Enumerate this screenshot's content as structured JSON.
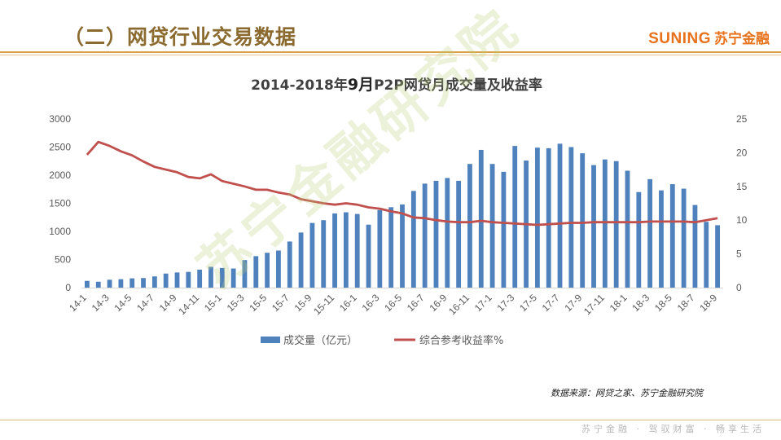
{
  "header": {
    "title": "（二）网贷行业交易数据",
    "brand_en": "SUNING",
    "brand_cn": "苏宁金融"
  },
  "watermark": "苏宁金融研究院",
  "source_note": "数据来源：网贷之家、苏宁金融研究院",
  "footer_slogan": "苏宁金融 · 驾驭财富 · 畅享生活",
  "colors": {
    "bar": "#4f81bd",
    "line": "#c0504d",
    "header_text": "#8b6a2f",
    "brand": "#e8721b",
    "rule": "#d7a040"
  },
  "chart_data": {
    "type": "bar",
    "combo": "bar + line (dual axis)",
    "title": "2014-2018年9月P2P网贷月成交量及收益率",
    "title_parts": {
      "a": "2014-2018年",
      "b": "9月",
      "c": "P2P网贷月成交量及收益率"
    },
    "x_tick_labels": [
      "14-1",
      "14-3",
      "14-5",
      "14-7",
      "14-9",
      "14-11",
      "15-1",
      "15-3",
      "15-5",
      "15-7",
      "15-9",
      "15-11",
      "16-1",
      "16-3",
      "16-5",
      "16-7",
      "16-9",
      "16-11",
      "17-1",
      "17-3",
      "17-5",
      "17-7",
      "17-9",
      "17-11",
      "18-1",
      "18-3",
      "18-5",
      "18-7",
      "18-9"
    ],
    "categories": [
      "14-1",
      "14-2",
      "14-3",
      "14-4",
      "14-5",
      "14-6",
      "14-7",
      "14-8",
      "14-9",
      "14-10",
      "14-11",
      "14-12",
      "15-1",
      "15-2",
      "15-3",
      "15-4",
      "15-5",
      "15-6",
      "15-7",
      "15-8",
      "15-9",
      "15-10",
      "15-11",
      "15-12",
      "16-1",
      "16-2",
      "16-3",
      "16-4",
      "16-5",
      "16-6",
      "16-7",
      "16-8",
      "16-9",
      "16-10",
      "16-11",
      "16-12",
      "17-1",
      "17-2",
      "17-3",
      "17-4",
      "17-5",
      "17-6",
      "17-7",
      "17-8",
      "17-9",
      "17-10",
      "17-11",
      "17-12",
      "18-1",
      "18-2",
      "18-3",
      "18-4",
      "18-5",
      "18-6",
      "18-7",
      "18-8",
      "18-9"
    ],
    "series": [
      {
        "name": "成交量（亿元）",
        "type": "bar",
        "axis": "left",
        "values": [
          120,
          105,
          140,
          150,
          165,
          170,
          200,
          250,
          270,
          280,
          320,
          370,
          350,
          340,
          490,
          560,
          620,
          660,
          820,
          980,
          1150,
          1200,
          1320,
          1340,
          1310,
          1120,
          1380,
          1430,
          1480,
          1720,
          1850,
          1900,
          1950,
          1900,
          2200,
          2450,
          2200,
          2060,
          2520,
          2260,
          2490,
          2480,
          2560,
          2500,
          2390,
          2180,
          2280,
          2250,
          2080,
          1700,
          1930,
          1730,
          1840,
          1760,
          1470,
          1170,
          1110
        ]
      },
      {
        "name": "综合参考收益率%",
        "type": "line",
        "axis": "right",
        "values": [
          19.7,
          21.6,
          21.0,
          20.2,
          19.6,
          18.7,
          17.9,
          17.5,
          17.1,
          16.4,
          16.2,
          16.8,
          15.8,
          15.4,
          15.0,
          14.5,
          14.5,
          14.1,
          13.8,
          13.1,
          12.8,
          12.5,
          12.3,
          12.5,
          12.3,
          11.9,
          11.7,
          11.3,
          11.0,
          10.4,
          10.3,
          10.0,
          9.8,
          9.7,
          9.7,
          9.9,
          9.7,
          9.6,
          9.5,
          9.4,
          9.3,
          9.4,
          9.5,
          9.6,
          9.6,
          9.7,
          9.7,
          9.7,
          9.7,
          9.7,
          9.8,
          9.8,
          9.8,
          9.8,
          9.7,
          10.0,
          10.3
        ]
      }
    ],
    "y_left": {
      "ticks": [
        "0",
        "500",
        "1000",
        "1500",
        "2000",
        "2500",
        "3000"
      ],
      "range": [
        0,
        3000
      ]
    },
    "y_right": {
      "ticks": [
        "0",
        "5",
        "10",
        "15",
        "20",
        "25"
      ],
      "range": [
        0,
        25
      ]
    },
    "legend_placement": "bottom-center",
    "grid": false
  }
}
